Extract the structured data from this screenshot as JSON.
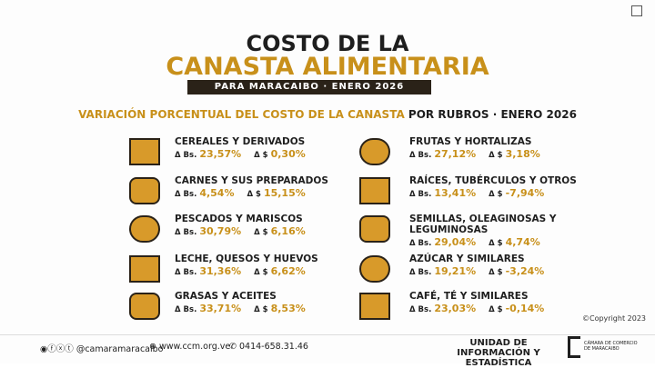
{
  "header": {
    "title_line1": "COSTO DE LA",
    "title_line2": "CANASTA ALIMENTARIA",
    "subtitle": "PARA MARACAIBO · ENERO 2026"
  },
  "section": {
    "heading_main": "VARIACIÓN PORCENTUAL DEL COSTO DE LA CANASTA",
    "heading_tail": "POR RUBROS · ENERO 2026"
  },
  "labels": {
    "bs": "Δ Bs.",
    "usd": "Δ $"
  },
  "items": [
    {
      "name": "CEREALES Y DERIVADOS",
      "bs": "23,57%",
      "usd": "0,30%"
    },
    {
      "name": "CARNES Y SUS PREPARADOS",
      "bs": "4,54%",
      "usd": "15,15%"
    },
    {
      "name": "PESCADOS Y MARISCOS",
      "bs": "30,79%",
      "usd": "6,16%"
    },
    {
      "name": "LECHE, QUESOS Y HUEVOS",
      "bs": "31,36%",
      "usd": "6,62%"
    },
    {
      "name": "GRASAS Y ACEITES",
      "bs": "33,71%",
      "usd": "8,53%"
    },
    {
      "name": "FRUTAS Y HORTALIZAS",
      "bs": "27,12%",
      "usd": "3,18%"
    },
    {
      "name": "RAÍCES, TUBÉRCULOS Y OTROS",
      "bs": "13,41%",
      "usd": "-7,94%"
    },
    {
      "name": "SEMILLAS, OLEAGINOSAS Y LEGUMINOSAS",
      "bs": "29,04%",
      "usd": "4,74%"
    },
    {
      "name": "AZÚCAR Y SIMILARES",
      "bs": "19,21%",
      "usd": "-3,24%"
    },
    {
      "name": "CAFÉ, TÉ Y SIMILARES",
      "bs": "23,03%",
      "usd": "-0,14%"
    }
  ],
  "copyright": "©Copyright 2023",
  "footer": {
    "social": "@camaramaracaibo",
    "web": "www.ccm.org.ve",
    "phone": "0414-658.31.46",
    "unit": "UNIDAD DE INFORMACIÓN Y ESTADÍSTICA",
    "org": "CÁMARA DE COMERCIO DE MARACAIBO"
  }
}
